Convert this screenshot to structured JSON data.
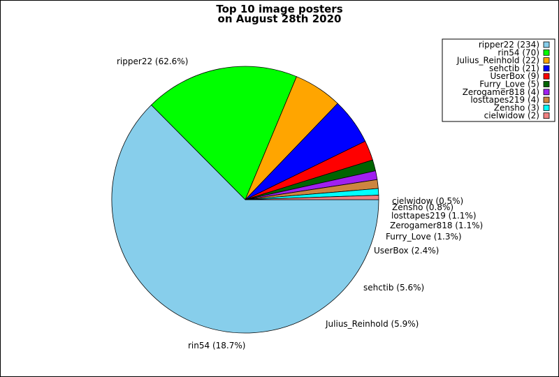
{
  "chart_data": {
    "type": "pie",
    "title": [
      "Top 10 image posters",
      "on August 28th 2020"
    ],
    "slices": [
      {
        "name": "ripper22",
        "count": 234,
        "percent": "62.6%",
        "color": "#87ceeb"
      },
      {
        "name": "rin54",
        "count": 70,
        "percent": "18.7%",
        "color": "#00ff00"
      },
      {
        "name": "Julius_Reinhold",
        "count": 22,
        "percent": "5.9%",
        "color": "#ffa500"
      },
      {
        "name": "sehctib",
        "count": 21,
        "percent": "5.6%",
        "color": "#0000ff"
      },
      {
        "name": "UserBox",
        "count": 9,
        "percent": "2.4%",
        "color": "#ff0000"
      },
      {
        "name": "Furry_Love",
        "count": 5,
        "percent": "1.3%",
        "color": "#006400"
      },
      {
        "name": "Zerogamer818",
        "count": 4,
        "percent": "1.1%",
        "color": "#a020f0"
      },
      {
        "name": "losttapes219",
        "count": 4,
        "percent": "1.1%",
        "color": "#cd853f"
      },
      {
        "name": "Zensho",
        "count": 3,
        "percent": "0.8%",
        "color": "#00ffff"
      },
      {
        "name": "cielwidow",
        "count": 2,
        "percent": "0.5%",
        "color": "#f08080"
      }
    ],
    "legend": {
      "placement": "top-right"
    }
  }
}
